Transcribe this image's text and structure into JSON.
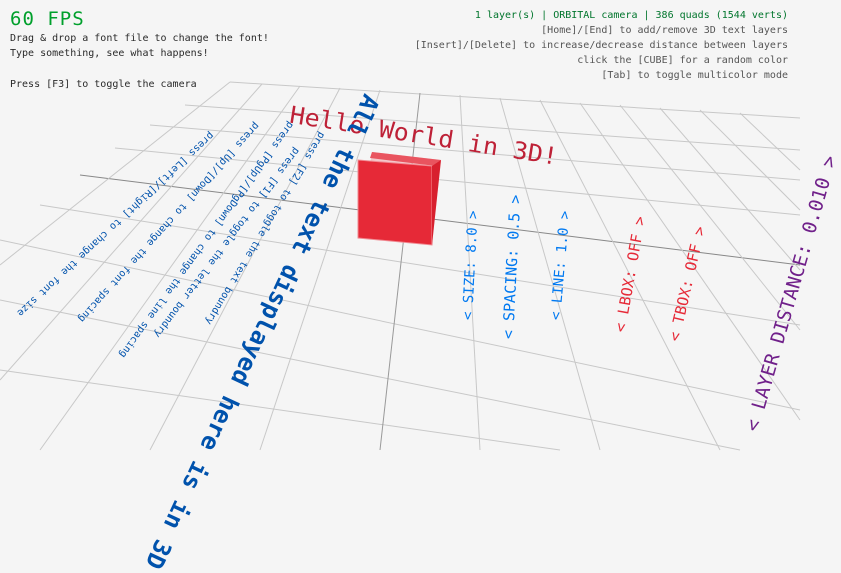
{
  "fps": "60 FPS",
  "help_left": [
    "Drag & drop a font file to change the font!",
    "Type something, see what happens!",
    "Press [F3] to toggle the camera"
  ],
  "status": "1 layer(s) | ORBITAL camera |  386 quads (1544 verts)",
  "help_right": [
    "[Home]/[End] to add/remove 3D text layers",
    "[Insert]/[Delete] to increase/decrease distance between layers",
    "click the [CUBE] for a random color",
    "[Tab] to toggle multicolor mode"
  ],
  "scene": {
    "title_3d": "Hello World in 3D!",
    "main_text": "All the text displayed here is in 3D",
    "instructions": [
      "press [Left]/[Right] to change the font size",
      "press [Up]/[Down] to change the font spacing",
      "press [PgUp]/[PgDown] to change the line spacing",
      "press [F1] to toggle the letter boundry",
      "press [F2] to toggle the text boundry"
    ],
    "options": {
      "size": "< SIZE: 8.0 >",
      "spacing": "< SPACING: 0.5 >",
      "line": "< LINE: 1.0 >",
      "lbox": "< LBOX: OFF >",
      "tbox": "< TBOX: OFF >",
      "layer_distance": "< LAYER DISTANCE: 0.010 >"
    }
  },
  "colors": {
    "fps": "#00a02c",
    "status": "#00752c",
    "cube": "#e62937",
    "title_3d": "#be2137",
    "text_blue": "#0052ac",
    "option_blue": "#0079f1",
    "option_red": "#e62937",
    "option_purple": "#70208a"
  }
}
